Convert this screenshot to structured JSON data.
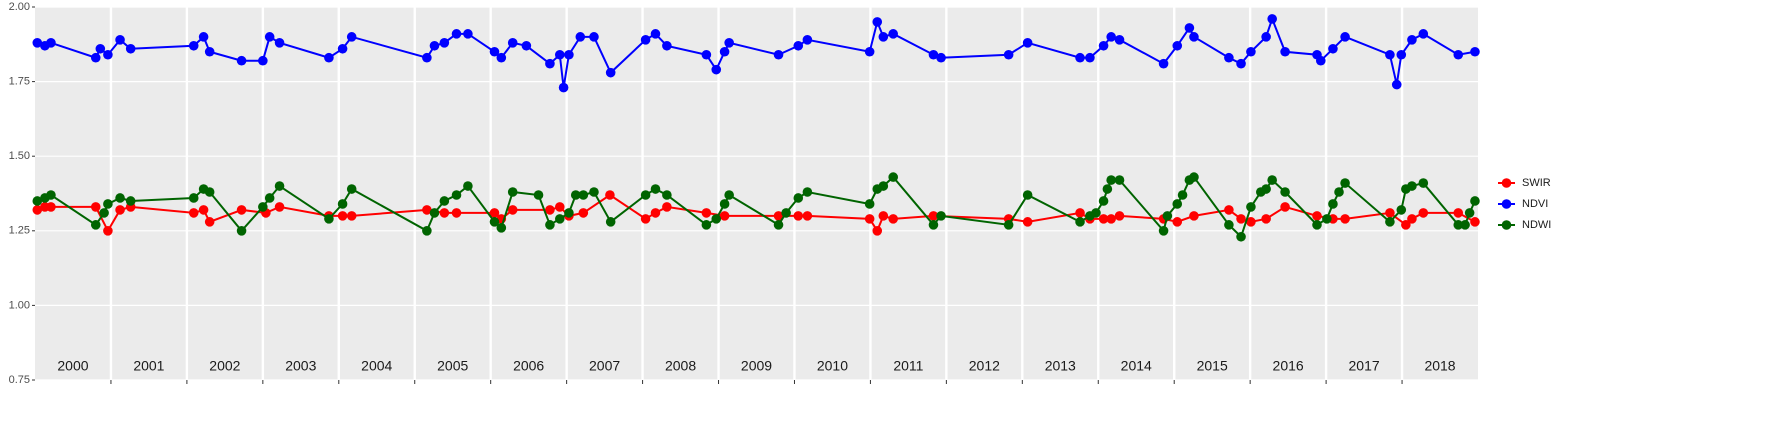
{
  "chart_data": {
    "type": "line",
    "xlim": [
      2000,
      2019
    ],
    "xticks": [
      2001,
      2002,
      2003,
      2004,
      2005,
      2006,
      2007,
      2008,
      2009,
      2010,
      2011,
      2012,
      2013,
      2014,
      2015,
      2016,
      2017,
      2018
    ],
    "ylim": [
      0.75,
      2.0
    ],
    "yticks": [
      {
        "value": 0.75,
        "label": "0.75"
      },
      {
        "value": 1.0,
        "label": "1.00"
      },
      {
        "value": 1.25,
        "label": "1.25"
      },
      {
        "value": 1.5,
        "label": "1.50"
      },
      {
        "value": 1.75,
        "label": "1.75"
      },
      {
        "value": 2.0,
        "label": "2.00"
      }
    ],
    "grid": true,
    "legend": "right",
    "year_labels": [
      "2000",
      "2001",
      "2002",
      "2003",
      "2004",
      "2005",
      "2006",
      "2007",
      "2008",
      "2009",
      "2010",
      "2011",
      "2012",
      "2013",
      "2014",
      "2015",
      "2016",
      "2017",
      "2018"
    ],
    "series": [
      {
        "name": "SWIR",
        "color": "#ff0000",
        "x": [
          2000.03,
          2000.13,
          2000.21,
          2000.8,
          2000.96,
          2001.12,
          2001.26,
          2002.09,
          2002.22,
          2002.3,
          2002.72,
          2003.04,
          2003.22,
          2003.87,
          2004.05,
          2004.17,
          2005.16,
          2005.39,
          2005.55,
          2006.05,
          2006.14,
          2006.29,
          2006.78,
          2006.91,
          2007.03,
          2007.22,
          2007.57,
          2008.04,
          2008.17,
          2008.32,
          2008.84,
          2009.08,
          2009.79,
          2010.05,
          2010.17,
          2010.99,
          2011.09,
          2011.17,
          2011.3,
          2011.83,
          2012.82,
          2013.07,
          2013.76,
          2013.89,
          2014.07,
          2014.17,
          2014.28,
          2014.86,
          2015.04,
          2015.26,
          2015.72,
          2015.88,
          2016.01,
          2016.21,
          2016.46,
          2016.88,
          2017.09,
          2017.25,
          2017.84,
          2018.05,
          2018.13,
          2018.28,
          2018.74,
          2018.96
        ],
        "values": [
          1.32,
          1.33,
          1.33,
          1.33,
          1.25,
          1.32,
          1.33,
          1.31,
          1.32,
          1.28,
          1.32,
          1.31,
          1.33,
          1.3,
          1.3,
          1.3,
          1.32,
          1.31,
          1.31,
          1.31,
          1.29,
          1.32,
          1.32,
          1.33,
          1.3,
          1.31,
          1.37,
          1.29,
          1.31,
          1.33,
          1.31,
          1.3,
          1.3,
          1.3,
          1.3,
          1.29,
          1.25,
          1.3,
          1.29,
          1.3,
          1.29,
          1.28,
          1.31,
          1.29,
          1.29,
          1.29,
          1.3,
          1.29,
          1.28,
          1.3,
          1.32,
          1.29,
          1.28,
          1.29,
          1.33,
          1.3,
          1.29,
          1.29,
          1.31,
          1.27,
          1.29,
          1.31,
          1.31,
          1.28
        ]
      },
      {
        "name": "NDVI",
        "color": "#0000ff",
        "x": [
          2000.03,
          2000.13,
          2000.21,
          2000.8,
          2000.86,
          2000.96,
          2001.12,
          2001.26,
          2002.09,
          2002.22,
          2002.3,
          2002.72,
          2003.0,
          2003.09,
          2003.22,
          2003.87,
          2004.05,
          2004.17,
          2005.16,
          2005.26,
          2005.39,
          2005.55,
          2005.7,
          2006.05,
          2006.14,
          2006.29,
          2006.47,
          2006.78,
          2006.91,
          2006.96,
          2007.03,
          2007.18,
          2007.36,
          2007.58,
          2008.04,
          2008.17,
          2008.32,
          2008.84,
          2008.97,
          2009.08,
          2009.14,
          2009.79,
          2010.05,
          2010.17,
          2010.99,
          2011.09,
          2011.17,
          2011.3,
          2011.83,
          2011.93,
          2012.82,
          2013.07,
          2013.76,
          2013.89,
          2014.07,
          2014.17,
          2014.28,
          2014.86,
          2015.04,
          2015.2,
          2015.26,
          2015.72,
          2015.88,
          2016.01,
          2016.21,
          2016.29,
          2016.46,
          2016.88,
          2016.93,
          2017.09,
          2017.25,
          2017.84,
          2017.93,
          2017.99,
          2018.13,
          2018.28,
          2018.74,
          2018.96
        ],
        "values": [
          1.88,
          1.87,
          1.88,
          1.83,
          1.86,
          1.84,
          1.89,
          1.86,
          1.87,
          1.9,
          1.85,
          1.82,
          1.82,
          1.9,
          1.88,
          1.83,
          1.86,
          1.9,
          1.83,
          1.87,
          1.88,
          1.91,
          1.91,
          1.85,
          1.83,
          1.88,
          1.87,
          1.81,
          1.84,
          1.73,
          1.84,
          1.9,
          1.9,
          1.78,
          1.89,
          1.91,
          1.87,
          1.84,
          1.79,
          1.85,
          1.88,
          1.84,
          1.87,
          1.89,
          1.85,
          1.95,
          1.9,
          1.91,
          1.84,
          1.83,
          1.84,
          1.88,
          1.83,
          1.83,
          1.87,
          1.9,
          1.89,
          1.81,
          1.87,
          1.93,
          1.9,
          1.83,
          1.81,
          1.85,
          1.9,
          1.96,
          1.85,
          1.84,
          1.82,
          1.86,
          1.9,
          1.84,
          1.74,
          1.84,
          1.89,
          1.91,
          1.84,
          1.85
        ]
      },
      {
        "name": "NDWI",
        "color": "#006400",
        "x": [
          2000.03,
          2000.13,
          2000.21,
          2000.8,
          2000.91,
          2000.96,
          2001.12,
          2001.26,
          2002.09,
          2002.22,
          2002.3,
          2002.72,
          2003.0,
          2003.09,
          2003.22,
          2003.87,
          2004.05,
          2004.17,
          2005.16,
          2005.26,
          2005.39,
          2005.55,
          2005.7,
          2006.05,
          2006.14,
          2006.29,
          2006.63,
          2006.78,
          2006.91,
          2007.03,
          2007.12,
          2007.22,
          2007.36,
          2007.58,
          2008.04,
          2008.17,
          2008.32,
          2008.84,
          2008.97,
          2009.08,
          2009.14,
          2009.79,
          2009.89,
          2010.05,
          2010.17,
          2010.99,
          2011.09,
          2011.17,
          2011.3,
          2011.83,
          2011.93,
          2012.82,
          2013.07,
          2013.76,
          2013.89,
          2013.97,
          2014.07,
          2014.12,
          2014.17,
          2014.28,
          2014.86,
          2014.91,
          2015.04,
          2015.11,
          2015.2,
          2015.26,
          2015.72,
          2015.88,
          2016.01,
          2016.14,
          2016.21,
          2016.29,
          2016.46,
          2016.88,
          2017.01,
          2017.09,
          2017.17,
          2017.25,
          2017.84,
          2017.99,
          2018.05,
          2018.13,
          2018.28,
          2018.74,
          2018.83,
          2018.89,
          2018.96
        ],
        "values": [
          1.35,
          1.36,
          1.37,
          1.27,
          1.31,
          1.34,
          1.36,
          1.35,
          1.36,
          1.39,
          1.38,
          1.25,
          1.33,
          1.36,
          1.4,
          1.29,
          1.34,
          1.39,
          1.25,
          1.31,
          1.35,
          1.37,
          1.4,
          1.28,
          1.26,
          1.38,
          1.37,
          1.27,
          1.29,
          1.31,
          1.37,
          1.37,
          1.38,
          1.28,
          1.37,
          1.39,
          1.37,
          1.27,
          1.29,
          1.34,
          1.37,
          1.27,
          1.31,
          1.36,
          1.38,
          1.34,
          1.39,
          1.4,
          1.43,
          1.27,
          1.3,
          1.27,
          1.37,
          1.28,
          1.3,
          1.31,
          1.35,
          1.39,
          1.42,
          1.42,
          1.25,
          1.3,
          1.34,
          1.37,
          1.42,
          1.43,
          1.27,
          1.23,
          1.33,
          1.38,
          1.39,
          1.42,
          1.38,
          1.27,
          1.29,
          1.34,
          1.38,
          1.41,
          1.28,
          1.32,
          1.39,
          1.4,
          1.41,
          1.27,
          1.27,
          1.31,
          1.35
        ]
      }
    ]
  }
}
